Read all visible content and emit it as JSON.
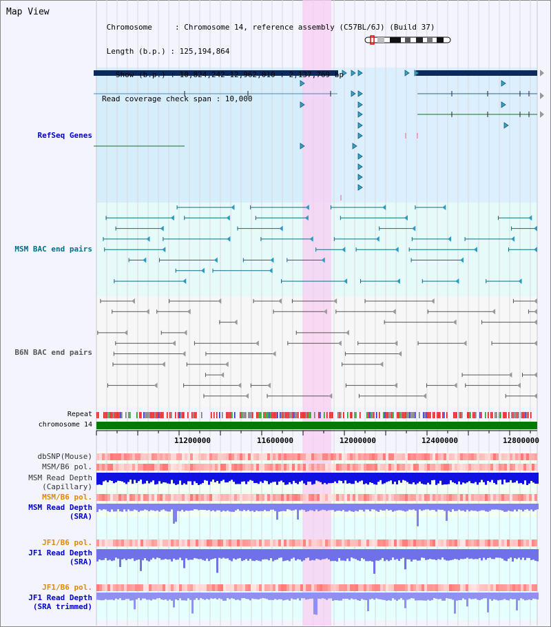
{
  "view": {
    "title": "Map View",
    "info_lines": [
      " Chromosome     : Chromosome 14, reference assembly (C57BL/6J) (Build 37)",
      " Length (b.p.) : 125,194,864",
      "   Show (b.p.) : 10,824,242-12,962,010 : 2,137,769 bp",
      "Read coverage check span : 10,000"
    ]
  },
  "tracks": {
    "refseq": "RefSeq Genes",
    "msm_bac": "MSM BAC end pairs",
    "b6n_bac": "B6N BAC end pairs",
    "repeat": "Repeat",
    "chromosome": "chromosome 14",
    "dbsnp": "dbSNP(Mouse)",
    "msm_b6_pol_1": "MSM/B6 pol.",
    "msm_depth_cap_1": "MSM Read Depth",
    "msm_depth_cap_2": "(Capillary)",
    "msm_b6_pol_2": "MSM/B6 pol.",
    "msm_depth_sra_1": "MSM Read Depth",
    "msm_depth_sra_2": "(SRA)",
    "jf1_b6_pol_1": "JF1/B6 pol.",
    "jf1_depth_sra_1": "JF1 Read Depth",
    "jf1_depth_sra_2": "(SRA)",
    "jf1_b6_pol_2": "JF1/B6 pol.",
    "jf1_depth_trim_1": "JF1 Read Depth",
    "jf1_depth_trim_2": "(SRA trimmed)"
  },
  "axis": {
    "ticks": [
      "11200000",
      "11600000",
      "12000000",
      "12400000",
      "12800000"
    ]
  },
  "colors": {
    "refseq_label": "#0000cc",
    "msm_label": "#006f8a",
    "pol_orange": "#e08a00",
    "depth_blue": "#0000cc",
    "highlight": "#f8d0f0"
  }
}
